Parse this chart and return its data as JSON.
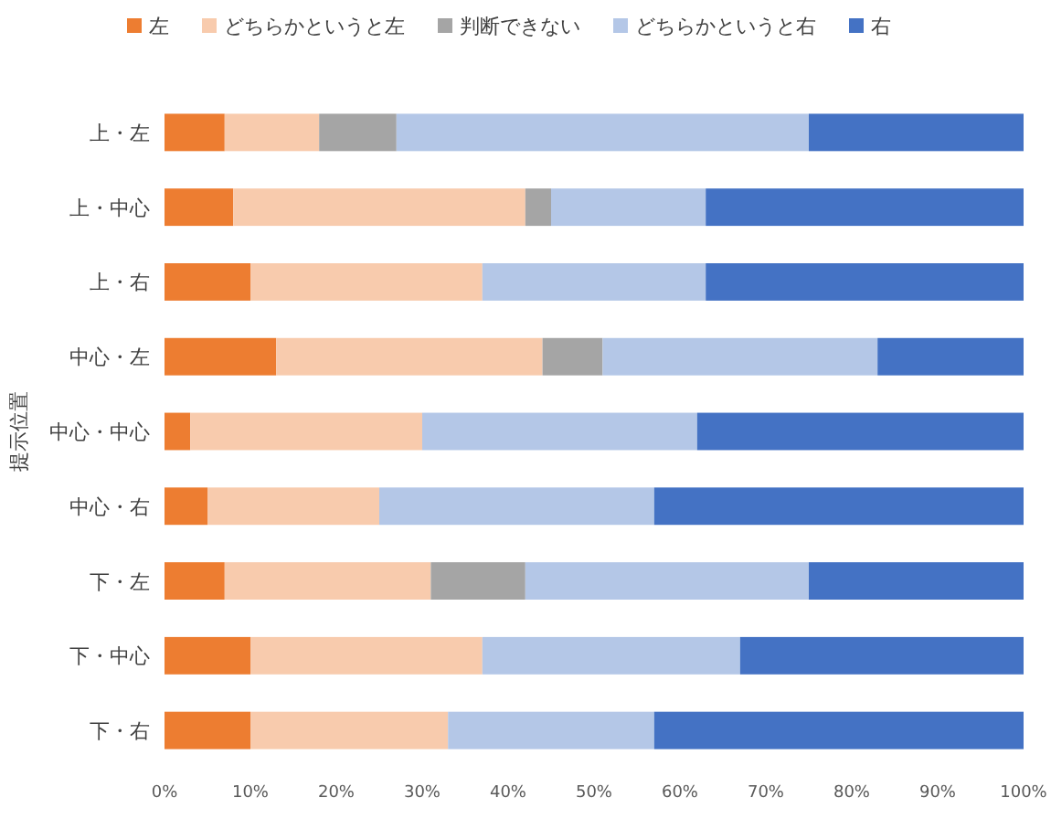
{
  "chart_data": {
    "type": "bar",
    "orientation": "horizontal",
    "stacked": true,
    "ylabel": "提示位置",
    "legend": "top",
    "categories": [
      "上・左",
      "上・中心",
      "上・右",
      "中心・左",
      "中心・中心",
      "中心・右",
      "下・左",
      "下・中心",
      "下・右"
    ],
    "series": [
      {
        "name": "左",
        "color": "#ed7d31",
        "values": [
          7,
          8,
          10,
          13,
          3,
          5,
          7,
          10,
          10
        ]
      },
      {
        "name": "どちらかというと左",
        "color": "#f8cbad",
        "values": [
          11,
          34,
          27,
          31,
          27,
          20,
          24,
          27,
          23
        ]
      },
      {
        "name": "判断できない",
        "color": "#a5a5a5",
        "values": [
          9,
          3,
          0,
          7,
          0,
          0,
          11,
          0,
          0
        ]
      },
      {
        "name": "どちらかというと右",
        "color": "#b4c7e7",
        "values": [
          48,
          18,
          26,
          32,
          32,
          32,
          33,
          30,
          24
        ]
      },
      {
        "name": "右",
        "color": "#4472c4",
        "values": [
          25,
          37,
          37,
          17,
          38,
          43,
          25,
          33,
          43
        ]
      }
    ],
    "xlim": [
      0,
      100
    ],
    "xticks": [
      {
        "value": 0,
        "label": "0%"
      },
      {
        "value": 10,
        "label": "10%"
      },
      {
        "value": 20,
        "label": "20%"
      },
      {
        "value": 30,
        "label": "30%"
      },
      {
        "value": 40,
        "label": "40%"
      },
      {
        "value": 50,
        "label": "50%"
      },
      {
        "value": 60,
        "label": "60%"
      },
      {
        "value": 70,
        "label": "70%"
      },
      {
        "value": 80,
        "label": "80%"
      },
      {
        "value": 90,
        "label": "90%"
      },
      {
        "value": 100,
        "label": "100%"
      }
    ],
    "grid": false
  }
}
